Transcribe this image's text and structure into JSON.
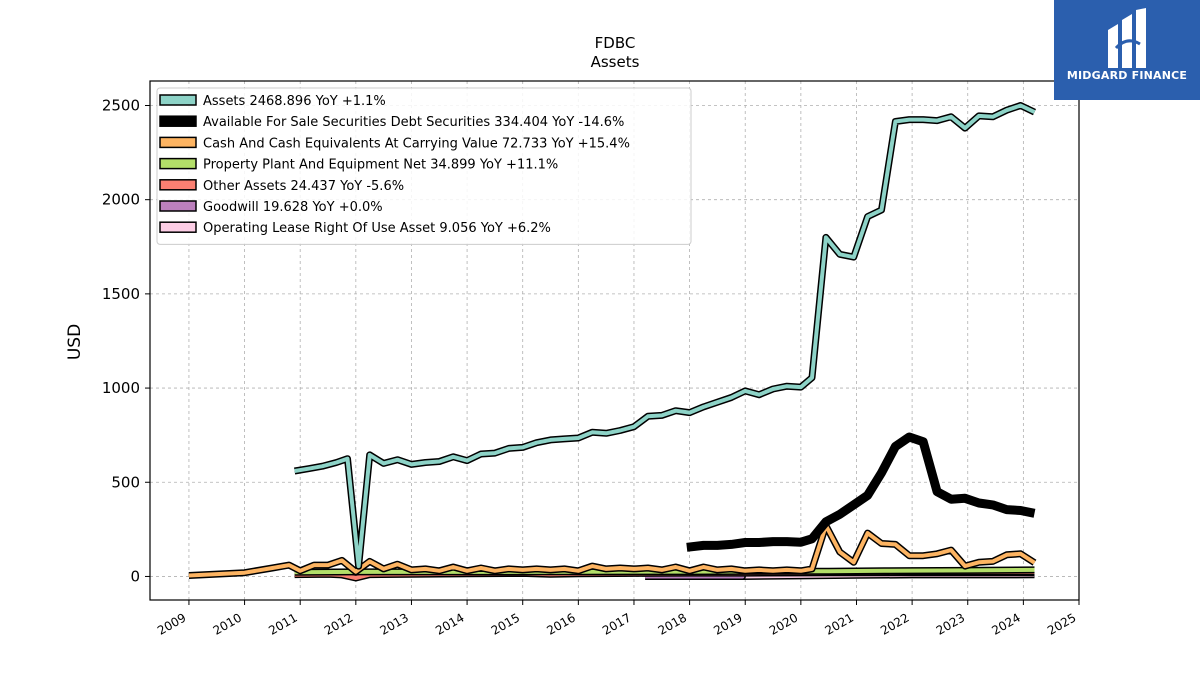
{
  "chart_data": {
    "type": "line",
    "title": "FDBC",
    "subtitle": "Assets",
    "ylabel": "USD",
    "xlabel": "",
    "xlim": [
      2008.3,
      2025.0
    ],
    "ylim": [
      -125,
      2630
    ],
    "grid": true,
    "legend_position": "top-left",
    "x_ticks": [
      "2009",
      "2010",
      "2011",
      "2012",
      "2013",
      "2014",
      "2015",
      "2016",
      "2017",
      "2018",
      "2019",
      "2020",
      "2021",
      "2022",
      "2023",
      "2024",
      "2025"
    ],
    "y_ticks": [
      "0",
      "500",
      "1000",
      "1500",
      "2000",
      "2500"
    ],
    "series": [
      {
        "name": "Assets",
        "legend_label": "Assets  2468.896 YoY +1.1%",
        "color": "#8dd3c7",
        "width": 4,
        "points": [
          [
            2010.9,
            560
          ],
          [
            2011.15,
            572
          ],
          [
            2011.4,
            585
          ],
          [
            2011.65,
            605
          ],
          [
            2011.85,
            625
          ],
          [
            2012.05,
            55
          ],
          [
            2012.25,
            645
          ],
          [
            2012.5,
            600
          ],
          [
            2012.75,
            620
          ],
          [
            2013.0,
            595
          ],
          [
            2013.25,
            605
          ],
          [
            2013.5,
            610
          ],
          [
            2013.75,
            635
          ],
          [
            2014.0,
            615
          ],
          [
            2014.25,
            650
          ],
          [
            2014.5,
            655
          ],
          [
            2014.75,
            680
          ],
          [
            2015.0,
            685
          ],
          [
            2015.25,
            710
          ],
          [
            2015.5,
            725
          ],
          [
            2015.75,
            730
          ],
          [
            2016.0,
            735
          ],
          [
            2016.25,
            765
          ],
          [
            2016.5,
            760
          ],
          [
            2016.75,
            775
          ],
          [
            2017.0,
            795
          ],
          [
            2017.25,
            850
          ],
          [
            2017.5,
            855
          ],
          [
            2017.75,
            880
          ],
          [
            2018.0,
            870
          ],
          [
            2018.25,
            900
          ],
          [
            2018.5,
            925
          ],
          [
            2018.75,
            950
          ],
          [
            2019.0,
            985
          ],
          [
            2019.25,
            965
          ],
          [
            2019.5,
            995
          ],
          [
            2019.75,
            1010
          ],
          [
            2020.0,
            1005
          ],
          [
            2020.2,
            1055
          ],
          [
            2020.45,
            1800
          ],
          [
            2020.7,
            1710
          ],
          [
            2020.95,
            1695
          ],
          [
            2021.2,
            1910
          ],
          [
            2021.45,
            1945
          ],
          [
            2021.7,
            2415
          ],
          [
            2021.95,
            2425
          ],
          [
            2022.2,
            2425
          ],
          [
            2022.45,
            2420
          ],
          [
            2022.7,
            2440
          ],
          [
            2022.95,
            2380
          ],
          [
            2023.2,
            2445
          ],
          [
            2023.45,
            2440
          ],
          [
            2023.7,
            2475
          ],
          [
            2023.95,
            2500
          ],
          [
            2024.2,
            2465
          ]
        ]
      },
      {
        "name": "Available For Sale Securities Debt Securities",
        "legend_label": "Available For Sale Securities Debt Securities  334.404 YoY -14.6%",
        "color": "#000000",
        "width": 9,
        "points": [
          [
            2017.95,
            155
          ],
          [
            2018.25,
            165
          ],
          [
            2018.5,
            165
          ],
          [
            2018.75,
            170
          ],
          [
            2019.0,
            180
          ],
          [
            2019.25,
            180
          ],
          [
            2019.5,
            185
          ],
          [
            2019.75,
            185
          ],
          [
            2020.0,
            182
          ],
          [
            2020.2,
            200
          ],
          [
            2020.45,
            290
          ],
          [
            2020.7,
            330
          ],
          [
            2020.95,
            380
          ],
          [
            2021.2,
            430
          ],
          [
            2021.45,
            550
          ],
          [
            2021.7,
            690
          ],
          [
            2021.95,
            740
          ],
          [
            2022.2,
            715
          ],
          [
            2022.45,
            450
          ],
          [
            2022.7,
            410
          ],
          [
            2022.95,
            415
          ],
          [
            2023.2,
            390
          ],
          [
            2023.45,
            380
          ],
          [
            2023.7,
            355
          ],
          [
            2023.95,
            350
          ],
          [
            2024.2,
            335
          ]
        ]
      },
      {
        "name": "Cash And Cash Equivalents At Carrying Value",
        "legend_label": "Cash And Cash Equivalents At Carrying Value  72.733 YoY +15.4%",
        "color": "#fdb462",
        "width": 4,
        "points": [
          [
            2009.0,
            5
          ],
          [
            2010.0,
            20
          ],
          [
            2010.5,
            45
          ],
          [
            2010.8,
            60
          ],
          [
            2011.0,
            30
          ],
          [
            2011.25,
            60
          ],
          [
            2011.5,
            60
          ],
          [
            2011.75,
            85
          ],
          [
            2012.0,
            25
          ],
          [
            2012.25,
            80
          ],
          [
            2012.5,
            40
          ],
          [
            2012.75,
            65
          ],
          [
            2013.0,
            35
          ],
          [
            2013.25,
            40
          ],
          [
            2013.5,
            30
          ],
          [
            2013.75,
            50
          ],
          [
            2014.0,
            30
          ],
          [
            2014.25,
            45
          ],
          [
            2014.5,
            30
          ],
          [
            2014.75,
            40
          ],
          [
            2015.0,
            35
          ],
          [
            2015.25,
            40
          ],
          [
            2015.5,
            35
          ],
          [
            2015.75,
            40
          ],
          [
            2016.0,
            30
          ],
          [
            2016.25,
            55
          ],
          [
            2016.5,
            40
          ],
          [
            2016.75,
            45
          ],
          [
            2017.0,
            40
          ],
          [
            2017.25,
            45
          ],
          [
            2017.5,
            35
          ],
          [
            2017.75,
            50
          ],
          [
            2018.0,
            30
          ],
          [
            2018.25,
            50
          ],
          [
            2018.5,
            35
          ],
          [
            2018.75,
            40
          ],
          [
            2019.0,
            30
          ],
          [
            2019.25,
            35
          ],
          [
            2019.5,
            30
          ],
          [
            2019.75,
            35
          ],
          [
            2020.0,
            30
          ],
          [
            2020.2,
            40
          ],
          [
            2020.45,
            270
          ],
          [
            2020.7,
            130
          ],
          [
            2020.95,
            75
          ],
          [
            2021.2,
            230
          ],
          [
            2021.45,
            175
          ],
          [
            2021.7,
            170
          ],
          [
            2021.95,
            110
          ],
          [
            2022.2,
            110
          ],
          [
            2022.45,
            120
          ],
          [
            2022.7,
            140
          ],
          [
            2022.95,
            55
          ],
          [
            2023.2,
            75
          ],
          [
            2023.45,
            80
          ],
          [
            2023.7,
            115
          ],
          [
            2023.95,
            120
          ],
          [
            2024.2,
            73
          ]
        ]
      },
      {
        "name": "Property Plant And Equipment Net",
        "legend_label": "Property Plant And Equipment Net  34.899 YoY +11.1%",
        "color": "#b3de69",
        "width": 4,
        "points": [
          [
            2010.9,
            22
          ],
          [
            2012.0,
            24
          ],
          [
            2014.0,
            24
          ],
          [
            2016.0,
            25
          ],
          [
            2018.0,
            26
          ],
          [
            2019.0,
            27
          ],
          [
            2020.0,
            28
          ],
          [
            2020.5,
            28
          ],
          [
            2021.0,
            29
          ],
          [
            2021.5,
            30
          ],
          [
            2022.0,
            31
          ],
          [
            2023.0,
            32
          ],
          [
            2024.2,
            35
          ]
        ]
      },
      {
        "name": "Other Assets",
        "legend_label": "Other Assets  24.437 YoY -5.6%",
        "color": "#fb8072",
        "width": 4,
        "points": [
          [
            2010.9,
            10
          ],
          [
            2011.5,
            12
          ],
          [
            2011.75,
            8
          ],
          [
            2012.0,
            -8
          ],
          [
            2012.25,
            10
          ],
          [
            2013.0,
            12
          ],
          [
            2014.0,
            14
          ],
          [
            2015.0,
            16
          ],
          [
            2015.5,
            12
          ],
          [
            2016.0,
            14
          ],
          [
            2017.0,
            16
          ],
          [
            2018.0,
            18
          ],
          [
            2019.0,
            18
          ],
          [
            2020.0,
            20
          ],
          [
            2021.0,
            22
          ],
          [
            2022.0,
            24
          ],
          [
            2023.0,
            25
          ],
          [
            2024.2,
            24
          ]
        ]
      },
      {
        "name": "Goodwill",
        "legend_label": "Goodwill  19.628 YoY +0.0%",
        "color": "#bc80bd",
        "width": 4,
        "points": [
          [
            2017.2,
            0
          ],
          [
            2018.95,
            0
          ],
          [
            2018.95,
            19.6
          ],
          [
            2024.2,
            19.6
          ]
        ]
      },
      {
        "name": "Operating Lease Right Of Use Asset",
        "legend_label": "Operating Lease Right Of Use Asset  9.056 YoY +6.2%",
        "color": "#fccde5",
        "width": 4,
        "points": [
          [
            2018.95,
            0
          ],
          [
            2020.0,
            3
          ],
          [
            2021.0,
            6
          ],
          [
            2022.0,
            8
          ],
          [
            2023.0,
            8.5
          ],
          [
            2024.2,
            9
          ]
        ]
      }
    ]
  },
  "logo": {
    "text": "MIDGARD FINANCE",
    "bg_color": "#2b5fae"
  }
}
